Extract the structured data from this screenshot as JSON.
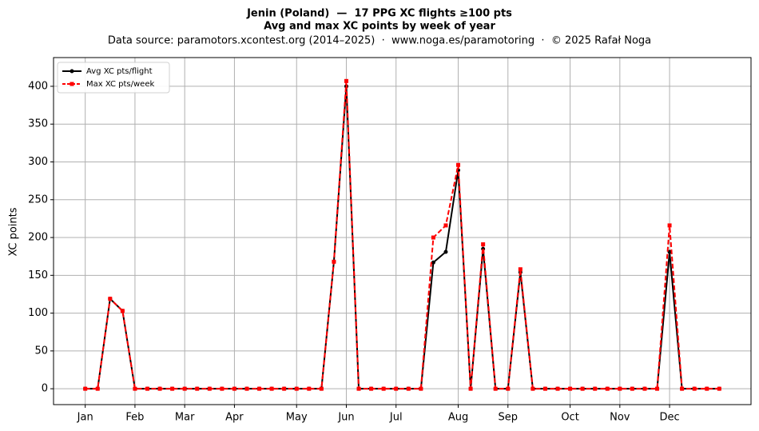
{
  "chart_data": {
    "type": "line",
    "title": [
      "Jenin (Poland)  —  17 PPG XC flights ≥100 pts",
      "Avg and max XC points by week of year"
    ],
    "subtitle": "Data source: paramotors.xcontest.org (2014–2025)  ·  www.noga.es/paramotoring  ·  © 2025 Rafał Noga",
    "ylabel": "XC points",
    "x": [
      1,
      2,
      3,
      4,
      5,
      6,
      7,
      8,
      9,
      10,
      11,
      12,
      13,
      14,
      15,
      16,
      17,
      18,
      19,
      20,
      21,
      22,
      23,
      24,
      25,
      26,
      27,
      28,
      29,
      30,
      31,
      32,
      33,
      34,
      35,
      36,
      37,
      38,
      39,
      40,
      41,
      42,
      43,
      44,
      45,
      46,
      47,
      48,
      49,
      50,
      51,
      52
    ],
    "series": [
      {
        "name": "Avg XC pts/flight",
        "color": "#000000",
        "dash": false,
        "marker": "circle",
        "values": [
          0,
          0,
          119,
          103,
          0,
          0,
          0,
          0,
          0,
          0,
          0,
          0,
          0,
          0,
          0,
          0,
          0,
          0,
          0,
          0,
          168,
          400,
          0,
          0,
          0,
          0,
          0,
          0,
          167,
          181,
          289,
          0,
          185,
          0,
          0,
          154,
          0,
          0,
          0,
          0,
          0,
          0,
          0,
          0,
          0,
          0,
          0,
          181,
          0,
          0,
          0,
          0
        ]
      },
      {
        "name": "Max XC pts/week",
        "color": "#ff0000",
        "dash": true,
        "marker": "square",
        "values": [
          0,
          0,
          119,
          103,
          0,
          0,
          0,
          0,
          0,
          0,
          0,
          0,
          0,
          0,
          0,
          0,
          0,
          0,
          0,
          0,
          168,
          407,
          0,
          0,
          0,
          0,
          0,
          0,
          200,
          216,
          296,
          0,
          191,
          0,
          0,
          158,
          0,
          0,
          0,
          0,
          0,
          0,
          0,
          0,
          0,
          0,
          0,
          216,
          0,
          0,
          0,
          0
        ]
      }
    ],
    "xlim": [
      -1.55,
      54.55
    ],
    "xticks": [
      {
        "value": 1,
        "label": "Jan"
      },
      {
        "value": 5,
        "label": "Feb"
      },
      {
        "value": 9,
        "label": "Mar"
      },
      {
        "value": 13,
        "label": "Apr"
      },
      {
        "value": 18,
        "label": "May"
      },
      {
        "value": 22,
        "label": "Jun"
      },
      {
        "value": 26,
        "label": "Jul"
      },
      {
        "value": 31,
        "label": "Aug"
      },
      {
        "value": 35,
        "label": "Sep"
      },
      {
        "value": 40,
        "label": "Oct"
      },
      {
        "value": 44,
        "label": "Nov"
      },
      {
        "value": 48,
        "label": "Dec"
      }
    ],
    "ylim": [
      -21,
      438
    ],
    "yticks": [
      0,
      50,
      100,
      150,
      200,
      250,
      300,
      350,
      400
    ],
    "grid": true,
    "legend": "upper-left"
  }
}
